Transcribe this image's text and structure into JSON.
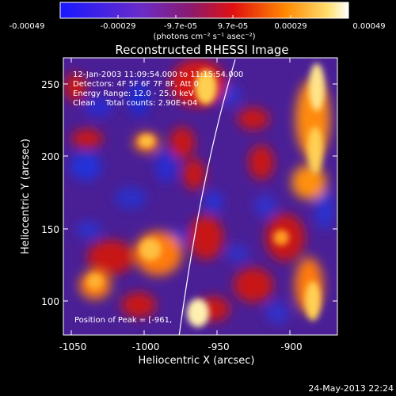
{
  "colorbar": {
    "tick_labels": [
      "-0.00049",
      "-0.00029",
      "-9.7e-05",
      "9.7e-05",
      "0.00029",
      "0.00049"
    ],
    "units_label": "(photons cm⁻² s⁻¹ asec⁻²)",
    "colormap": "blue-purple-red-orange-yellow-white"
  },
  "image": {
    "title": "Reconstructed RHESSI Image",
    "annotations": [
      "12-Jan-2003 11:09:54.000 to 11:15:54.000",
      "Detectors: 4F 5F 6F 7F 8F, Att 0",
      "Energy Range: 12.0 - 25.0 keV",
      "Clean    Total counts: 2.90E+04"
    ],
    "peak_label": "Position of Peak = [-961,",
    "x_axis": {
      "label": "Heliocentric X (arcsec)",
      "ticks": [
        "-1050",
        "-1000",
        "-950",
        "-900"
      ],
      "tick_values": [
        -1050,
        -1000,
        -950,
        -900
      ],
      "range": [
        -1060,
        -872
      ]
    },
    "y_axis": {
      "label": "Heliocentric Y (arcsec)",
      "ticks": [
        "100",
        "150",
        "200",
        "250"
      ],
      "tick_values": [
        100,
        150,
        200,
        250
      ],
      "range": [
        76,
        270
      ]
    },
    "limb_line": "white solar limb arc",
    "dominant_colors": {
      "purple": "#5a1fa8",
      "blue": "#1b2bd0",
      "red": "#c8141e",
      "orange": "#ff8000",
      "yellow": "#ffe080"
    }
  },
  "footer": {
    "timestamp": "24-May-2013 22:24"
  }
}
